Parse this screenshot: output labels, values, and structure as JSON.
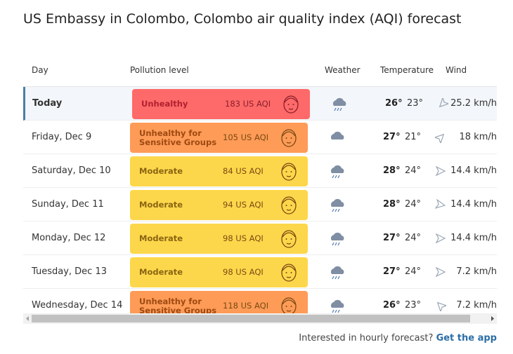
{
  "title": "US Embassy in Colombo, Colombo air quality index (AQI) forecast",
  "table": {
    "headers": [
      "Day",
      "Pollution level",
      "Weather",
      "Temperature",
      "Wind"
    ],
    "rows": [
      {
        "day": "Today",
        "level": "Unhealthy",
        "aqi": "183 US AQI",
        "color": "#fe6a69",
        "high": "26°",
        "low": "23°",
        "wind": "25.2 km/h"
      },
      {
        "day": "Friday, Dec 9",
        "level": "Unhealthy for Sensitive Groups",
        "aqi": "105 US AQI",
        "color": "#fe9b57",
        "high": "27°",
        "low": "21°",
        "wind": "18 km/h"
      },
      {
        "day": "Saturday, Dec 10",
        "level": "Moderate",
        "aqi": "84 US AQI",
        "color": "#fdd74b",
        "high": "28°",
        "low": "24°",
        "wind": "14.4 km/h"
      },
      {
        "day": "Sunday, Dec 11",
        "level": "Moderate",
        "aqi": "94 US AQI",
        "color": "#fdd74b",
        "high": "28°",
        "low": "24°",
        "wind": "14.4 km/h"
      },
      {
        "day": "Monday, Dec 12",
        "level": "Moderate",
        "aqi": "98 US AQI",
        "color": "#fdd74b",
        "high": "27°",
        "low": "24°",
        "wind": "14.4 km/h"
      },
      {
        "day": "Tuesday, Dec 13",
        "level": "Moderate",
        "aqi": "98 US AQI",
        "color": "#fdd74b",
        "high": "27°",
        "low": "24°",
        "wind": "7.2 km/h"
      },
      {
        "day": "Wednesday, Dec 14",
        "level": "Unhealthy for Sensitive Groups",
        "aqi": "118 US AQI",
        "color": "#fe9b57",
        "high": "26°",
        "low": "23°",
        "wind": "7.2 km/h"
      }
    ]
  },
  "footer": {
    "text": "Interested in hourly forecast?",
    "link": "Get the app"
  }
}
